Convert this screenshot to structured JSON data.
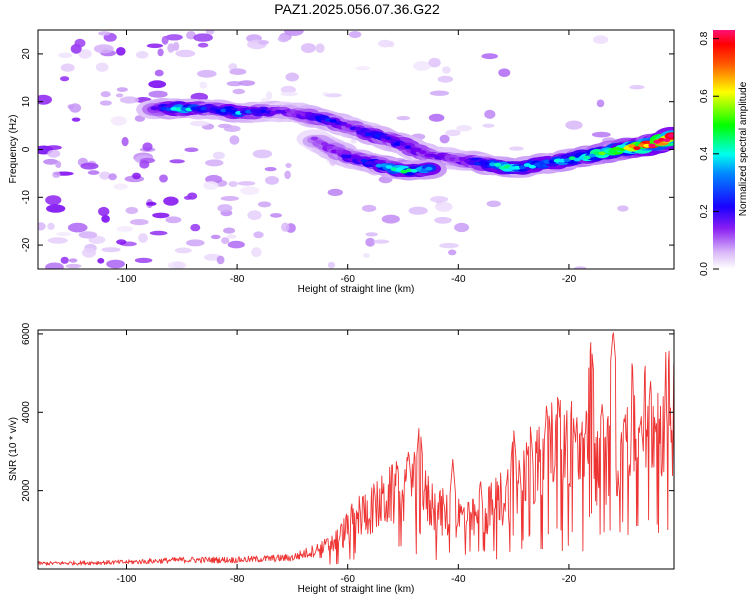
{
  "chart_data": [
    {
      "type": "heatmap",
      "title": "PAZ1.2025.056.07.36.G22",
      "xlabel": "Height of straight line (km)",
      "ylabel": "Frequency (Hz)",
      "xlim": [
        -116,
        -1
      ],
      "ylim": [
        -25,
        25
      ],
      "xticks": [
        -100,
        -80,
        -60,
        -40,
        -20
      ],
      "yticks": [
        20,
        10,
        0,
        -10,
        -20
      ],
      "colorbar": {
        "label": "Normalized spectral amplitude",
        "range": [
          0.0,
          0.83
        ],
        "ticks": [
          0.0,
          0.2,
          0.4,
          0.6,
          0.8
        ],
        "colors": [
          "#ffffff",
          "#c99bf6",
          "#7b00f0",
          "#0000ff",
          "#00ffff",
          "#00ff00",
          "#ffff00",
          "#ff0000",
          "#ff0077"
        ]
      },
      "ridge": [
        {
          "x": -95,
          "y": 8.5,
          "v": 0.22
        },
        {
          "x": -90,
          "y": 8.6,
          "v": 0.4
        },
        {
          "x": -85,
          "y": 8.5,
          "v": 0.25
        },
        {
          "x": -80,
          "y": 7.8,
          "v": 0.35
        },
        {
          "x": -75,
          "y": 8.0,
          "v": 0.25
        },
        {
          "x": -70,
          "y": 7.8,
          "v": 0.18
        },
        {
          "x": -65,
          "y": 6.5,
          "v": 0.32
        },
        {
          "x": -60,
          "y": 4.8,
          "v": 0.22
        },
        {
          "x": -55,
          "y": 3.0,
          "v": 0.3
        },
        {
          "x": -50,
          "y": 1.0,
          "v": 0.28
        },
        {
          "x": -45,
          "y": -1.5,
          "v": 0.22
        },
        {
          "x": -40,
          "y": -2.0,
          "v": 0.2
        },
        {
          "x": -35,
          "y": -3.0,
          "v": 0.35
        },
        {
          "x": -30,
          "y": -4.0,
          "v": 0.42
        },
        {
          "x": -25,
          "y": -3.0,
          "v": 0.35
        },
        {
          "x": -20,
          "y": -2.2,
          "v": 0.4
        },
        {
          "x": -15,
          "y": -1.0,
          "v": 0.45
        },
        {
          "x": -10,
          "y": 0.2,
          "v": 0.55
        },
        {
          "x": -5,
          "y": 1.0,
          "v": 0.75
        },
        {
          "x": -1,
          "y": 2.8,
          "v": 0.8
        }
      ],
      "lower_branch": [
        {
          "x": -66,
          "y": 2.0,
          "v": 0.15
        },
        {
          "x": -60,
          "y": -1.5,
          "v": 0.25
        },
        {
          "x": -55,
          "y": -3.0,
          "v": 0.3
        },
        {
          "x": -50,
          "y": -4.5,
          "v": 0.42
        },
        {
          "x": -45,
          "y": -4.0,
          "v": 0.35
        }
      ]
    },
    {
      "type": "line",
      "xlabel": "Height of straight line (km)",
      "ylabel": "SNR (10 * v/v)",
      "xlim": [
        -116,
        -1
      ],
      "ylim": [
        0,
        6100
      ],
      "xticks": [
        -100,
        -80,
        -60,
        -40,
        -20
      ],
      "yticks": [
        2000,
        4000,
        6000
      ],
      "color": "#ee3333",
      "envelope": [
        {
          "x": -116,
          "y": 120
        },
        {
          "x": -100,
          "y": 150
        },
        {
          "x": -90,
          "y": 200
        },
        {
          "x": -80,
          "y": 200
        },
        {
          "x": -70,
          "y": 250
        },
        {
          "x": -65,
          "y": 450
        },
        {
          "x": -62,
          "y": 700
        },
        {
          "x": -58,
          "y": 1300
        },
        {
          "x": -55,
          "y": 1500
        },
        {
          "x": -52,
          "y": 1800
        },
        {
          "x": -50,
          "y": 1900
        },
        {
          "x": -48,
          "y": 2000
        },
        {
          "x": -45,
          "y": 1600
        },
        {
          "x": -42,
          "y": 1300
        },
        {
          "x": -40,
          "y": 1300
        },
        {
          "x": -37,
          "y": 1200
        },
        {
          "x": -34,
          "y": 1500
        },
        {
          "x": -30,
          "y": 2000
        },
        {
          "x": -27,
          "y": 2300
        },
        {
          "x": -24,
          "y": 2800
        },
        {
          "x": -21,
          "y": 3000
        },
        {
          "x": -18,
          "y": 2900
        },
        {
          "x": -15,
          "y": 2600
        },
        {
          "x": -12,
          "y": 2800
        },
        {
          "x": -10,
          "y": 3300
        },
        {
          "x": -8,
          "y": 3600
        },
        {
          "x": -5,
          "y": 3600
        },
        {
          "x": -3,
          "y": 3750
        },
        {
          "x": -1,
          "y": 3750
        }
      ],
      "peaks": [
        {
          "x": -51,
          "y": 2700
        },
        {
          "x": -49,
          "y": 3050
        },
        {
          "x": -47,
          "y": 3800
        },
        {
          "x": -41,
          "y": 2800
        },
        {
          "x": -36,
          "y": 2300
        },
        {
          "x": -30,
          "y": 3600
        },
        {
          "x": -27,
          "y": 3700
        },
        {
          "x": -24,
          "y": 4100
        },
        {
          "x": -22,
          "y": 4450
        },
        {
          "x": -19,
          "y": 3600
        },
        {
          "x": -16,
          "y": 5850
        },
        {
          "x": -14,
          "y": 4200
        },
        {
          "x": -12,
          "y": 6100
        },
        {
          "x": -10,
          "y": 3900
        },
        {
          "x": -7,
          "y": 3800
        },
        {
          "x": -4,
          "y": 4000
        },
        {
          "x": -2,
          "y": 4100
        }
      ]
    }
  ]
}
